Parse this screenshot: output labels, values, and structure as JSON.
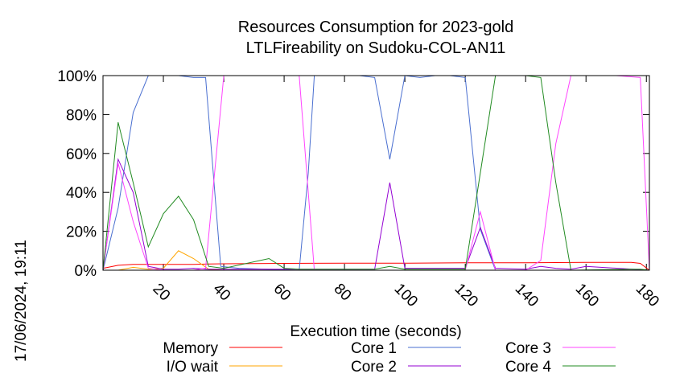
{
  "side_label": "17/06/2024, 19:11",
  "chart_data": {
    "type": "line",
    "title": "Resources Consumption for 2023-gold",
    "subtitle": "LTLFireability on Sudoku-COL-AN11",
    "xlabel": "Execution time (seconds)",
    "ylabel": "",
    "xlim": [
      0,
      181
    ],
    "ylim": [
      0,
      100
    ],
    "xticks": [
      20,
      40,
      60,
      80,
      100,
      120,
      140,
      160,
      180
    ],
    "yticks": [
      0,
      20,
      40,
      60,
      80,
      100
    ],
    "ytick_labels": [
      "0%",
      "20%",
      "40%",
      "60%",
      "80%",
      "100%"
    ],
    "grid": false,
    "legend": "bottom",
    "series": [
      {
        "name": "Memory",
        "color": "#ff0000",
        "x": [
          0,
          5,
          10,
          15,
          20,
          25,
          30,
          35,
          40,
          60,
          80,
          100,
          120,
          140,
          160,
          175,
          178,
          181
        ],
        "y": [
          1,
          2.5,
          3,
          3,
          3,
          3,
          3,
          3.2,
          3.3,
          3.5,
          3.6,
          3.6,
          3.8,
          3.8,
          4,
          4,
          3.5,
          0
        ]
      },
      {
        "name": "I/O wait",
        "color": "#ffa500",
        "x": [
          0,
          5,
          10,
          15,
          20,
          25,
          30,
          35,
          40,
          181
        ],
        "y": [
          0,
          0,
          1.5,
          0.5,
          1,
          10,
          6,
          0.5,
          0,
          0
        ]
      },
      {
        "name": "Core 1",
        "color": "#4a6fd0",
        "x": [
          0,
          5,
          10,
          15,
          20,
          25,
          30,
          34,
          39,
          45,
          65,
          68,
          70,
          75,
          85,
          90,
          95,
          100,
          105,
          110,
          115,
          120,
          125,
          130,
          181
        ],
        "y": [
          0,
          32,
          81,
          100,
          100,
          100,
          99,
          99,
          2,
          1,
          0,
          50,
          100,
          100,
          100,
          99,
          57,
          100,
          99,
          100,
          100,
          99,
          21,
          0,
          0
        ]
      },
      {
        "name": "Core 2",
        "color": "#9400d3",
        "x": [
          0,
          5,
          10,
          15,
          20,
          25,
          30,
          35,
          40,
          60,
          90,
          95,
          100,
          120,
          125,
          130,
          140,
          145,
          150,
          155,
          160,
          181
        ],
        "y": [
          0,
          57,
          40,
          2,
          0.5,
          0.5,
          1,
          0.5,
          0.5,
          0.5,
          0.5,
          45,
          1,
          1,
          22,
          1,
          0.5,
          2,
          1,
          0.5,
          2,
          0
        ]
      },
      {
        "name": "Core 3",
        "color": "#ff44ff",
        "x": [
          0,
          5,
          10,
          15,
          20,
          25,
          30,
          34,
          40,
          45,
          60,
          65,
          70,
          115,
          120,
          125,
          130,
          140,
          145,
          150,
          155,
          170,
          178,
          181
        ],
        "y": [
          0,
          55,
          25,
          1,
          0,
          0,
          0,
          1,
          100,
          100,
          100,
          100,
          0,
          0,
          0,
          30,
          0,
          0,
          5,
          65,
          100,
          100,
          99,
          0
        ]
      },
      {
        "name": "Core 4",
        "color": "#228b22",
        "x": [
          0,
          5,
          10,
          15,
          20,
          25,
          30,
          35,
          40,
          55,
          60,
          65,
          90,
          95,
          100,
          120,
          125,
          130,
          140,
          145,
          150,
          155,
          175,
          178,
          181
        ],
        "y": [
          0,
          76,
          45,
          12,
          29,
          38,
          26,
          2,
          1,
          6,
          1,
          0.5,
          0.5,
          2,
          0.5,
          0.5,
          50,
          100,
          100,
          99,
          45,
          0,
          0.5,
          0.5,
          0
        ]
      }
    ]
  }
}
